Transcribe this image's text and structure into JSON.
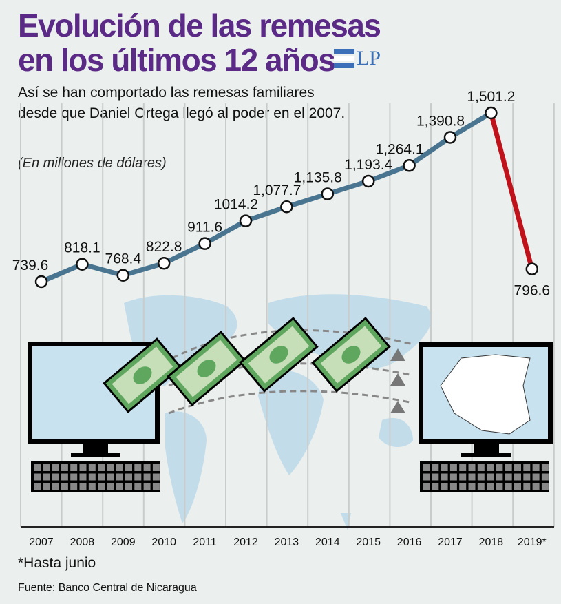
{
  "header": {
    "title_line1": "Evolución de las remesas",
    "title_line2": "en los últimos 12 años",
    "logo": "LP",
    "subtitle": "Así se han comportado las remesas familiares desde que Daniel Ortega llegó al poder en el 2007.",
    "units": "(En millones de dólares)"
  },
  "chart_data": {
    "type": "line",
    "title": "Evolución de las remesas en los últimos 12 años",
    "ylabel": "Millones de dólares",
    "xlabel": "",
    "categories": [
      "2007",
      "2008",
      "2009",
      "2010",
      "2011",
      "2012",
      "2013",
      "2014",
      "2015",
      "2016",
      "2017",
      "2018",
      "2019*"
    ],
    "values": [
      739.6,
      818.1,
      768.4,
      822.8,
      911.6,
      1014.2,
      1077.7,
      1135.8,
      1193.4,
      1264.1,
      1390.8,
      1501.2,
      796.6
    ],
    "labels": [
      "739.6",
      "818.1",
      "768.4",
      "822.8",
      "911.6",
      "1014.2",
      "1,077.7",
      "1,135.8",
      "1,193.4",
      "1,264.1",
      "1,390.8",
      "1,501.2",
      "796.6"
    ],
    "ylim": [
      739.6,
      1501.2
    ],
    "grid": "vertical",
    "colors": {
      "line": "#4a7590",
      "drop": "#c0121b",
      "title": "#5b2a86"
    }
  },
  "footnote": "*Hasta junio",
  "source": "Fuente: Banco Central de Nicaragua"
}
